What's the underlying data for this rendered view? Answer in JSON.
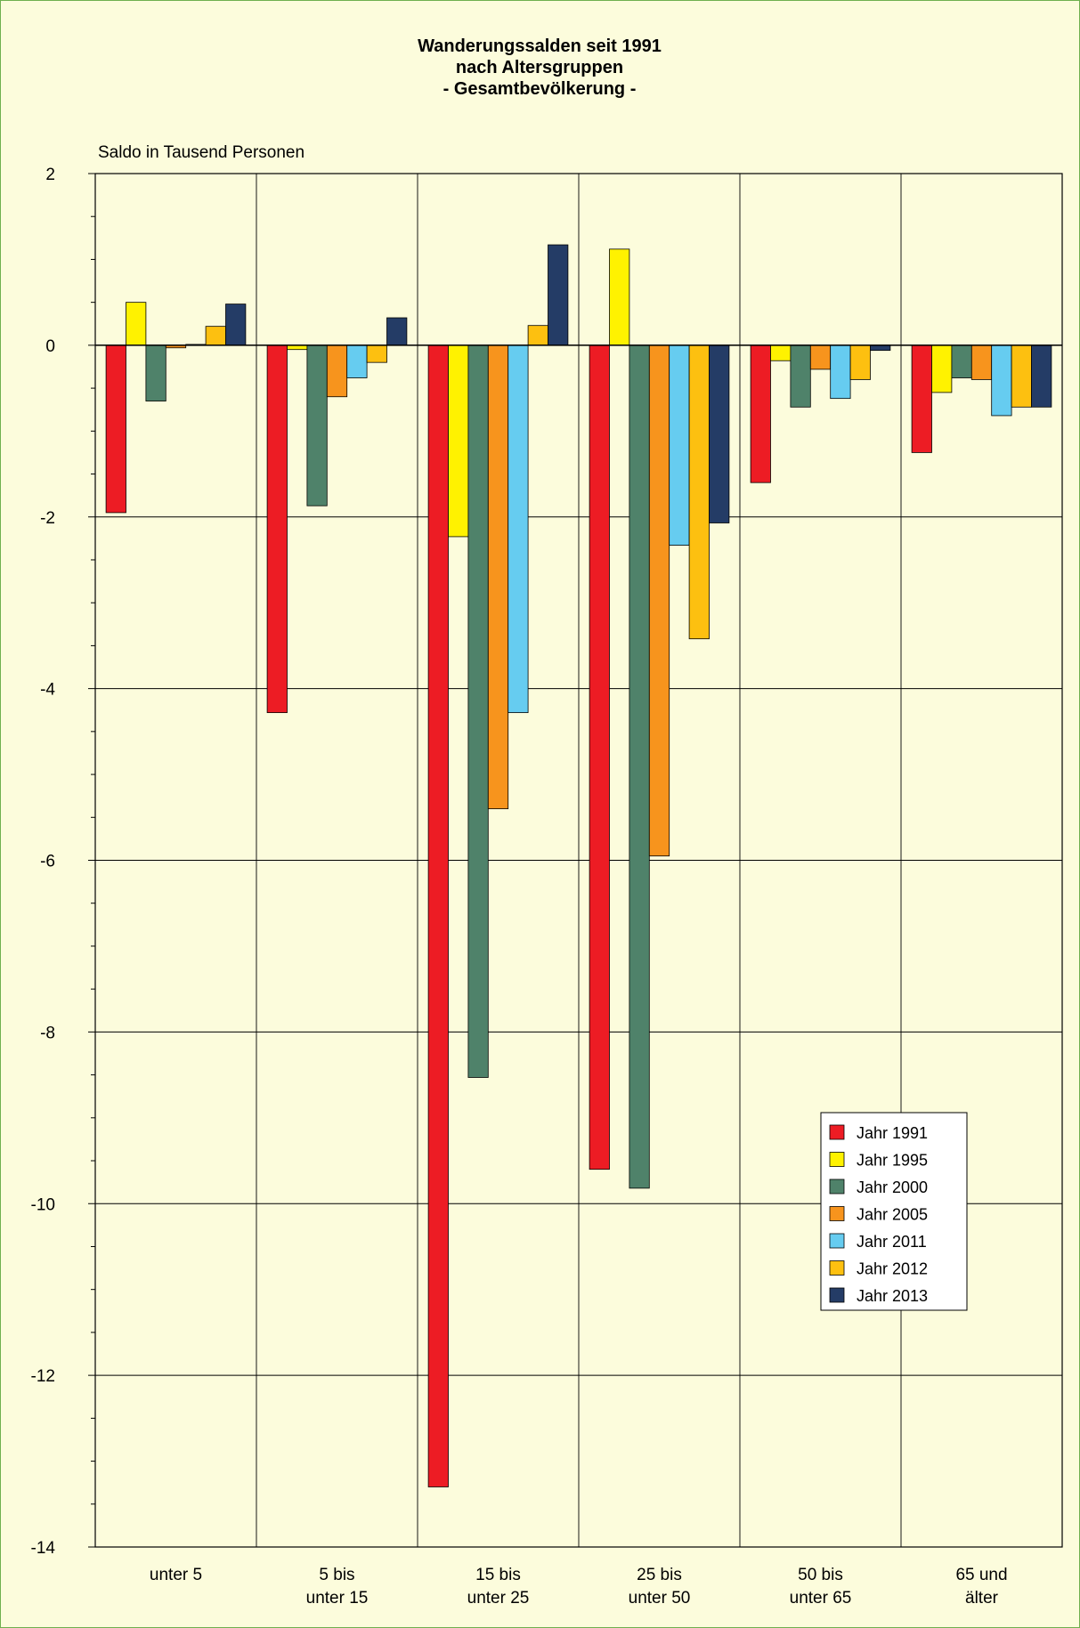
{
  "chart_data": {
    "type": "bar",
    "title": [
      "Wanderungssalden seit 1991",
      "nach Altersgruppen",
      "- Gesamtbevölkerung -"
    ],
    "ylabel": "Saldo in Tausend Personen",
    "ylim": [
      -14,
      2
    ],
    "yticks": [
      2,
      0,
      -2,
      -4,
      -6,
      -8,
      -10,
      -12,
      -14
    ],
    "grid": true,
    "legend_position": "lower-right",
    "categories": [
      [
        "unter 5"
      ],
      [
        "5 bis",
        "unter 15"
      ],
      [
        "15 bis",
        "unter 25"
      ],
      [
        "25 bis",
        "unter 50"
      ],
      [
        "50 bis",
        "unter 65"
      ],
      [
        "65 und",
        "älter"
      ]
    ],
    "series": [
      {
        "name": "Jahr 1991",
        "color": "#ed1c24",
        "values": [
          -1.95,
          -4.28,
          -13.3,
          -9.6,
          -1.6,
          -1.25
        ]
      },
      {
        "name": "Jahr 1995",
        "color": "#fff200",
        "values": [
          0.5,
          -0.05,
          -2.23,
          1.12,
          -0.18,
          -0.55
        ]
      },
      {
        "name": "Jahr 2000",
        "color": "#4f826a",
        "values": [
          -0.65,
          -1.87,
          -8.53,
          -9.82,
          -0.72,
          -0.38
        ]
      },
      {
        "name": "Jahr 2005",
        "color": "#f7941d",
        "values": [
          -0.03,
          -0.6,
          -5.4,
          -5.95,
          -0.28,
          -0.4
        ]
      },
      {
        "name": "Jahr 2011",
        "color": "#66ccf0",
        "values": [
          0.01,
          -0.38,
          -4.28,
          -2.33,
          -0.62,
          -0.82
        ]
      },
      {
        "name": "Jahr 2012",
        "color": "#fdc010",
        "values": [
          0.22,
          -0.2,
          0.23,
          -3.42,
          -0.4,
          -0.72
        ]
      },
      {
        "name": "Jahr 2013",
        "color": "#243c66",
        "values": [
          0.48,
          0.32,
          1.17,
          -2.07,
          -0.06,
          -0.72
        ]
      }
    ]
  }
}
